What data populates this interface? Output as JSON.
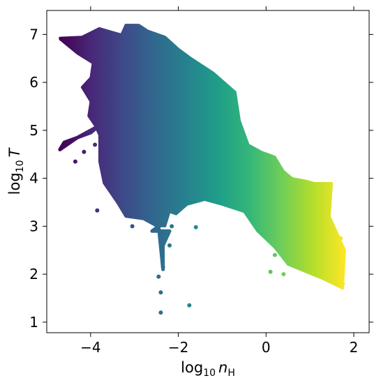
{
  "chart_data": {
    "type": "scatter",
    "title": "",
    "xlabel": {
      "prefix": "log",
      "sub": "10",
      "var": "n",
      "var_sub": "H"
    },
    "ylabel": {
      "prefix": "log",
      "sub": "10",
      "var": "T"
    },
    "xlim": [
      -5.0,
      2.35
    ],
    "ylim": [
      0.78,
      7.5
    ],
    "xticks": [
      -4,
      -2,
      0,
      2
    ],
    "xtick_labels": [
      "−4",
      "−2",
      "0",
      "2"
    ],
    "yticks": [
      1,
      2,
      3,
      4,
      5,
      6,
      7
    ],
    "ytick_labels": [
      "1",
      "2",
      "3",
      "4",
      "5",
      "6",
      "7"
    ],
    "grid": false,
    "legend": "none",
    "colormap": "viridis",
    "colormap_stops": [
      "#440154",
      "#482878",
      "#3e4a89",
      "#31688e",
      "#26828e",
      "#1f9e89",
      "#35b779",
      "#6ece58",
      "#b5de2b",
      "#fde725"
    ],
    "color_by": "x",
    "color_range": [
      -4.7,
      1.8
    ],
    "region_boundary": [
      [
        -4.7,
        6.93
      ],
      [
        -4.2,
        6.95
      ],
      [
        -3.8,
        7.13
      ],
      [
        -3.5,
        7.05
      ],
      [
        -3.3,
        7.0
      ],
      [
        -3.2,
        7.2
      ],
      [
        -2.9,
        7.2
      ],
      [
        -2.7,
        7.08
      ],
      [
        -2.3,
        6.95
      ],
      [
        -2.0,
        6.7
      ],
      [
        -1.7,
        6.5
      ],
      [
        -1.2,
        6.2
      ],
      [
        -0.7,
        5.8
      ],
      [
        -0.6,
        5.2
      ],
      [
        -0.4,
        4.7
      ],
      [
        -0.1,
        4.55
      ],
      [
        0.2,
        4.45
      ],
      [
        0.4,
        4.15
      ],
      [
        0.6,
        4.0
      ],
      [
        0.9,
        3.95
      ],
      [
        1.1,
        3.9
      ],
      [
        1.5,
        3.9
      ],
      [
        1.45,
        3.2
      ],
      [
        1.6,
        2.9
      ],
      [
        1.8,
        2.5
      ],
      [
        1.75,
        1.7
      ],
      [
        1.3,
        1.9
      ],
      [
        0.9,
        2.05
      ],
      [
        0.5,
        2.2
      ],
      [
        0.2,
        2.55
      ],
      [
        -0.2,
        2.9
      ],
      [
        -0.5,
        3.3
      ],
      [
        -1.0,
        3.45
      ],
      [
        -1.4,
        3.55
      ],
      [
        -1.8,
        3.45
      ],
      [
        -2.05,
        3.25
      ],
      [
        -2.2,
        3.3
      ],
      [
        -2.3,
        3.0
      ],
      [
        -2.5,
        3.0
      ],
      [
        -2.8,
        3.15
      ],
      [
        -3.2,
        3.2
      ],
      [
        -3.4,
        3.5
      ],
      [
        -3.7,
        3.9
      ],
      [
        -3.8,
        4.35
      ],
      [
        -3.8,
        4.9
      ],
      [
        -3.9,
        5.1
      ],
      [
        -4.05,
        5.3
      ],
      [
        -4.0,
        5.6
      ],
      [
        -4.2,
        5.9
      ],
      [
        -4.0,
        6.1
      ],
      [
        -3.95,
        6.4
      ],
      [
        -4.3,
        6.6
      ],
      [
        -4.7,
        6.9
      ]
    ],
    "branches": [
      {
        "name": "cold-plume",
        "points": [
          [
            -2.45,
            3.0
          ],
          [
            -2.35,
            2.1
          ],
          [
            -2.35,
            2.6
          ],
          [
            -2.2,
            2.9
          ],
          [
            -2.6,
            2.9
          ]
        ]
      },
      {
        "name": "low-density-arm",
        "points": [
          [
            -3.8,
            5.1
          ],
          [
            -4.3,
            4.85
          ],
          [
            -4.7,
            4.6
          ],
          [
            -4.6,
            4.75
          ],
          [
            -4.0,
            4.95
          ]
        ]
      }
    ],
    "outliers": [
      [
        -2.4,
        1.2
      ],
      [
        -1.75,
        1.35
      ],
      [
        -2.4,
        1.62
      ],
      [
        -2.45,
        1.95
      ],
      [
        -2.35,
        2.15
      ],
      [
        -2.2,
        2.6
      ],
      [
        -4.35,
        4.35
      ],
      [
        -4.15,
        4.55
      ],
      [
        -3.85,
        3.33
      ],
      [
        -1.6,
        2.98
      ],
      [
        0.1,
        2.05
      ],
      [
        0.4,
        2.0
      ],
      [
        0.2,
        2.4
      ],
      [
        -3.9,
        4.7
      ],
      [
        -3.05,
        3.0
      ],
      [
        -2.15,
        3.0
      ],
      [
        1.7,
        2.75
      ],
      [
        1.75,
        1.8
      ],
      [
        1.3,
        3.65
      ],
      [
        1.3,
        3.5
      ]
    ]
  }
}
